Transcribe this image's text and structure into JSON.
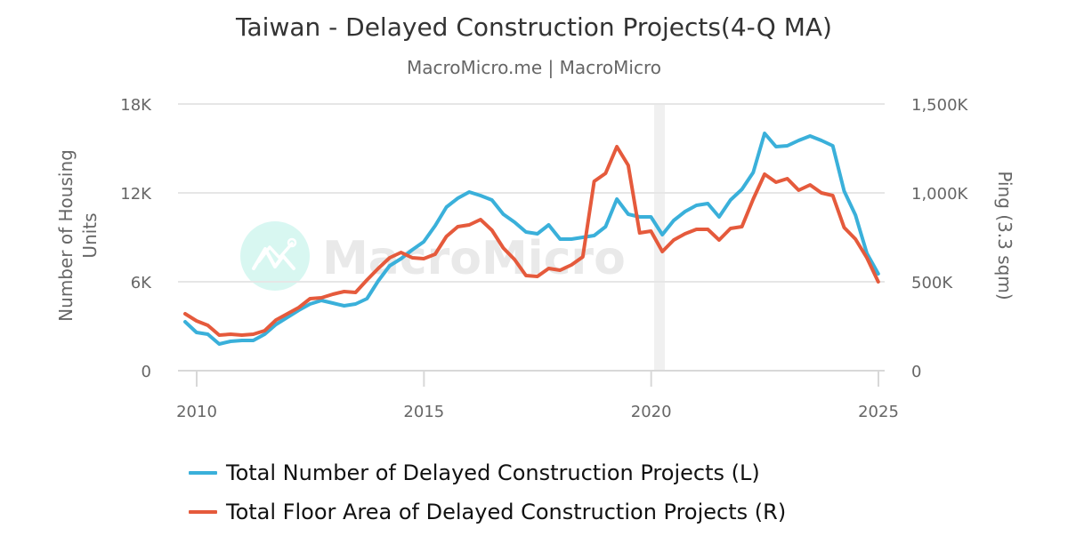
{
  "title": "Taiwan - Delayed Construction Projects(4-Q MA)",
  "subtitle": "MacroMicro.me | MacroMicro",
  "watermark": "MacroMicro",
  "colors": {
    "series_left": "#3ab0da",
    "series_right": "#e55a3c",
    "grid": "#e6e6e6",
    "recession_band": "#f0f0f0",
    "logo_circle": "#d6f7f1"
  },
  "legend": [
    {
      "label": "Total Number of Delayed Construction Projects (L)",
      "color": "#3ab0da"
    },
    {
      "label": "Total Floor Area of Delayed Construction Projects (R)",
      "color": "#e55a3c"
    }
  ],
  "chart_data": {
    "type": "line",
    "title": "Taiwan - Delayed Construction Projects(4-Q MA)",
    "subtitle": "MacroMicro.me | MacroMicro",
    "xlabel": "",
    "ylabel_left": "Number of Housing Units",
    "ylabel_right": "Ping (3.3 sqm)",
    "x_ticks": [
      "2010",
      "2015",
      "2020",
      "2025"
    ],
    "y_left_ticks": [
      "0",
      "6K",
      "12K",
      "18K"
    ],
    "y_right_ticks": [
      "0",
      "500K",
      "1,000K",
      "1,500K"
    ],
    "ylim_left": [
      0,
      18000
    ],
    "ylim_right": [
      0,
      1500000
    ],
    "grid": true,
    "legend_position": "bottom",
    "shaded_period": {
      "start": "2020Q1",
      "end": "2020Q2"
    },
    "x": [
      "2009Q4",
      "2010Q1",
      "2010Q2",
      "2010Q3",
      "2010Q4",
      "2011Q1",
      "2011Q2",
      "2011Q3",
      "2011Q4",
      "2012Q1",
      "2012Q2",
      "2012Q3",
      "2012Q4",
      "2013Q1",
      "2013Q2",
      "2013Q3",
      "2013Q4",
      "2014Q1",
      "2014Q2",
      "2014Q3",
      "2014Q4",
      "2015Q1",
      "2015Q2",
      "2015Q3",
      "2015Q4",
      "2016Q1",
      "2016Q2",
      "2016Q3",
      "2016Q4",
      "2017Q1",
      "2017Q2",
      "2017Q3",
      "2017Q4",
      "2018Q1",
      "2018Q2",
      "2018Q3",
      "2018Q4",
      "2019Q1",
      "2019Q2",
      "2019Q3",
      "2019Q4",
      "2020Q1",
      "2020Q2",
      "2020Q3",
      "2020Q4",
      "2021Q1",
      "2021Q2",
      "2021Q3",
      "2021Q4",
      "2022Q1",
      "2022Q2",
      "2022Q3",
      "2022Q4",
      "2023Q1",
      "2023Q2",
      "2023Q3",
      "2023Q4",
      "2024Q1",
      "2024Q2",
      "2024Q3",
      "2024Q4",
      "2025Q1"
    ],
    "series": [
      {
        "name": "Total Number of Delayed Construction Projects (L)",
        "axis": "left",
        "color": "#3ab0da",
        "values": [
          3300,
          2580,
          2460,
          1800,
          1980,
          2040,
          2040,
          2460,
          3120,
          3600,
          4080,
          4500,
          4740,
          4560,
          4380,
          4500,
          4860,
          6060,
          7080,
          7560,
          8160,
          8700,
          9780,
          11040,
          11640,
          12060,
          11820,
          11520,
          10560,
          10020,
          9360,
          9240,
          9840,
          8880,
          8880,
          9000,
          9120,
          9720,
          11580,
          10560,
          10380,
          10380,
          9180,
          10140,
          10740,
          11160,
          11280,
          10380,
          11520,
          12240,
          13380,
          16020,
          15120,
          15180,
          15540,
          15840,
          15540,
          15180,
          12120,
          10500,
          7920,
          6540
        ]
      },
      {
        "name": "Total Floor Area of Delayed Construction Projects (R)",
        "axis": "right",
        "color": "#e55a3c",
        "values": [
          320000,
          280000,
          255000,
          200000,
          205000,
          200000,
          205000,
          225000,
          285000,
          320000,
          355000,
          405000,
          410000,
          430000,
          445000,
          440000,
          510000,
          575000,
          635000,
          665000,
          635000,
          630000,
          655000,
          755000,
          810000,
          820000,
          850000,
          790000,
          690000,
          625000,
          535000,
          530000,
          575000,
          565000,
          595000,
          640000,
          1065000,
          1110000,
          1260000,
          1155000,
          775000,
          785000,
          670000,
          735000,
          770000,
          795000,
          795000,
          735000,
          800000,
          810000,
          965000,
          1105000,
          1060000,
          1080000,
          1015000,
          1045000,
          1000000,
          985000,
          805000,
          740000,
          635000,
          500000
        ]
      }
    ]
  }
}
